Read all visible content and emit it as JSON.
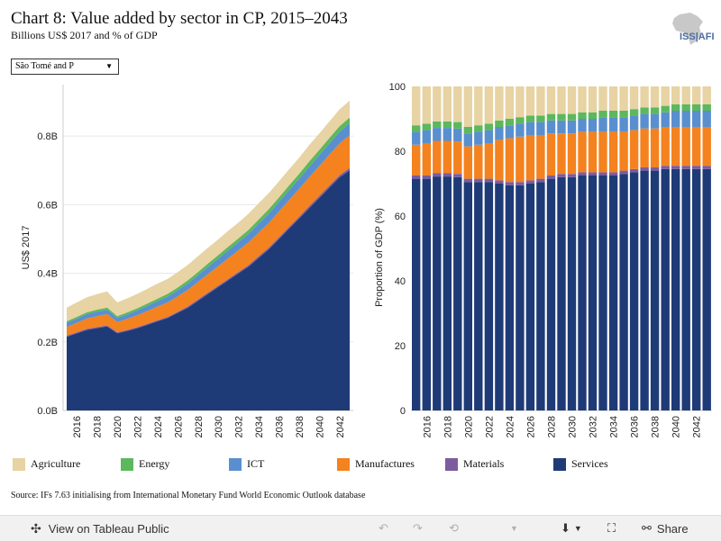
{
  "header": {
    "title": "Chart 8: Value added by sector in CP, 2015–2043",
    "subtitle": "Billions US$ 2017 and % of GDP",
    "logo_text": "ISS|AFI"
  },
  "filter": {
    "selected": "São Tomé and P"
  },
  "source": "Source: IFs 7.63 initialising from International Monetary Fund World Economic Outlook database",
  "toolbar": {
    "view_label": "View on Tableau Public",
    "share_label": "Share"
  },
  "colors": {
    "Agriculture": "#e7d3a3",
    "Energy": "#5cb85c",
    "ICT": "#5a8fcf",
    "Manufactures": "#f4821f",
    "Materials": "#7c5c9e",
    "Services": "#1f3b77"
  },
  "chart_data": [
    {
      "type": "area",
      "ylabel": "US$ 2017",
      "ylim": [
        0,
        0.95
      ],
      "yticks": [
        "0.0B",
        "0.2B",
        "0.4B",
        "0.6B",
        "0.8B"
      ],
      "ytick_values": [
        0,
        0.2,
        0.4,
        0.6,
        0.8
      ],
      "x": [
        2015,
        2016,
        2017,
        2018,
        2019,
        2020,
        2021,
        2022,
        2023,
        2024,
        2025,
        2026,
        2027,
        2028,
        2029,
        2030,
        2031,
        2032,
        2033,
        2034,
        2035,
        2036,
        2037,
        2038,
        2039,
        2040,
        2041,
        2042,
        2043
      ],
      "xticks": [
        2016,
        2018,
        2020,
        2022,
        2024,
        2026,
        2028,
        2030,
        2032,
        2034,
        2036,
        2038,
        2040,
        2042
      ],
      "stack_order": [
        "Services",
        "Materials",
        "Manufactures",
        "ICT",
        "Energy",
        "Agriculture"
      ],
      "series": [
        {
          "name": "Services",
          "values": [
            0.215,
            0.225,
            0.235,
            0.24,
            0.245,
            0.225,
            0.232,
            0.24,
            0.25,
            0.26,
            0.27,
            0.285,
            0.3,
            0.32,
            0.34,
            0.36,
            0.38,
            0.4,
            0.42,
            0.445,
            0.47,
            0.5,
            0.53,
            0.56,
            0.59,
            0.62,
            0.65,
            0.68,
            0.7
          ]
        },
        {
          "name": "Materials",
          "values": [
            0.003,
            0.003,
            0.003,
            0.003,
            0.003,
            0.003,
            0.003,
            0.003,
            0.003,
            0.003,
            0.003,
            0.003,
            0.004,
            0.004,
            0.004,
            0.004,
            0.004,
            0.004,
            0.004,
            0.005,
            0.005,
            0.005,
            0.005,
            0.005,
            0.006,
            0.006,
            0.006,
            0.006,
            0.007
          ]
        },
        {
          "name": "Manufactures",
          "values": [
            0.025,
            0.028,
            0.03,
            0.032,
            0.033,
            0.03,
            0.032,
            0.035,
            0.037,
            0.04,
            0.042,
            0.045,
            0.048,
            0.051,
            0.054,
            0.057,
            0.06,
            0.063,
            0.066,
            0.069,
            0.072,
            0.075,
            0.078,
            0.081,
            0.084,
            0.087,
            0.09,
            0.093,
            0.095
          ]
        },
        {
          "name": "ICT",
          "values": [
            0.012,
            0.012,
            0.013,
            0.013,
            0.013,
            0.012,
            0.013,
            0.014,
            0.015,
            0.016,
            0.017,
            0.018,
            0.019,
            0.02,
            0.021,
            0.022,
            0.023,
            0.024,
            0.025,
            0.026,
            0.027,
            0.028,
            0.029,
            0.03,
            0.031,
            0.032,
            0.033,
            0.034,
            0.035
          ]
        },
        {
          "name": "Energy",
          "values": [
            0.005,
            0.005,
            0.005,
            0.006,
            0.006,
            0.005,
            0.006,
            0.006,
            0.007,
            0.007,
            0.008,
            0.008,
            0.009,
            0.009,
            0.01,
            0.01,
            0.011,
            0.011,
            0.012,
            0.012,
            0.013,
            0.013,
            0.014,
            0.014,
            0.015,
            0.015,
            0.016,
            0.016,
            0.017
          ]
        },
        {
          "name": "Agriculture",
          "values": [
            0.04,
            0.042,
            0.044,
            0.045,
            0.047,
            0.04,
            0.041,
            0.042,
            0.043,
            0.044,
            0.044,
            0.045,
            0.045,
            0.046,
            0.046,
            0.046,
            0.046,
            0.046,
            0.047,
            0.047,
            0.047,
            0.047,
            0.047,
            0.047,
            0.048,
            0.048,
            0.048,
            0.049,
            0.049
          ]
        }
      ]
    },
    {
      "type": "bar",
      "stacked": true,
      "ylabel": "Proportion of GDP (%)",
      "ylim": [
        0,
        100
      ],
      "yticks": [
        "0",
        "20",
        "40",
        "60",
        "80",
        "100"
      ],
      "ytick_values": [
        0,
        20,
        40,
        60,
        80,
        100
      ],
      "x": [
        2015,
        2016,
        2017,
        2018,
        2019,
        2020,
        2021,
        2022,
        2023,
        2024,
        2025,
        2026,
        2027,
        2028,
        2029,
        2030,
        2031,
        2032,
        2033,
        2034,
        2035,
        2036,
        2037,
        2038,
        2039,
        2040,
        2041,
        2042,
        2043
      ],
      "xticks": [
        2016,
        2018,
        2020,
        2022,
        2024,
        2026,
        2028,
        2030,
        2032,
        2034,
        2036,
        2038,
        2040,
        2042
      ],
      "stack_order": [
        "Services",
        "Materials",
        "Manufactures",
        "ICT",
        "Energy",
        "Agriculture"
      ],
      "series": [
        {
          "name": "Services",
          "values": [
            71.5,
            71.5,
            72.2,
            72.2,
            72.0,
            70.5,
            70.5,
            70.5,
            70.0,
            69.5,
            69.5,
            70.0,
            70.5,
            71.5,
            72.0,
            72.0,
            72.5,
            72.5,
            72.5,
            72.5,
            73.0,
            73.5,
            74.0,
            74.0,
            74.5,
            74.5,
            74.5,
            74.5,
            74.5
          ]
        },
        {
          "name": "Materials",
          "values": [
            1.0,
            1.0,
            1.0,
            1.0,
            1.0,
            1.0,
            1.0,
            1.0,
            1.0,
            1.0,
            1.0,
            1.0,
            1.0,
            1.0,
            1.0,
            1.0,
            1.0,
            1.0,
            1.0,
            1.0,
            1.0,
            1.0,
            1.0,
            1.0,
            1.0,
            1.0,
            1.0,
            1.0,
            1.0
          ]
        },
        {
          "name": "Manufactures",
          "values": [
            9.5,
            10.0,
            10.0,
            10.0,
            10.0,
            10.0,
            10.5,
            11.0,
            12.5,
            13.5,
            14.0,
            14.0,
            13.5,
            13.0,
            12.5,
            12.5,
            12.5,
            12.5,
            12.5,
            12.5,
            12.0,
            12.0,
            12.0,
            12.0,
            12.0,
            12.0,
            12.0,
            12.0,
            12.0
          ]
        },
        {
          "name": "ICT",
          "values": [
            4.0,
            4.0,
            4.0,
            4.0,
            4.0,
            4.0,
            4.0,
            4.0,
            4.0,
            4.0,
            4.0,
            4.0,
            4.0,
            4.0,
            4.0,
            4.0,
            4.0,
            4.0,
            4.5,
            4.5,
            4.5,
            4.5,
            4.5,
            4.5,
            4.5,
            5.0,
            5.0,
            5.0,
            5.0
          ]
        },
        {
          "name": "Energy",
          "values": [
            2.0,
            2.0,
            2.0,
            2.0,
            2.0,
            2.0,
            2.0,
            2.0,
            2.0,
            2.0,
            2.0,
            2.0,
            2.0,
            2.0,
            2.0,
            2.0,
            2.0,
            2.0,
            2.0,
            2.0,
            2.0,
            2.0,
            2.0,
            2.0,
            2.0,
            2.0,
            2.0,
            2.0,
            2.0
          ]
        },
        {
          "name": "Agriculture",
          "values": [
            12.0,
            11.5,
            10.8,
            10.8,
            11.0,
            12.5,
            12.0,
            11.5,
            10.5,
            10.0,
            9.5,
            9.0,
            9.0,
            8.5,
            8.5,
            8.5,
            8.0,
            8.0,
            7.5,
            7.5,
            7.5,
            7.0,
            6.5,
            6.5,
            6.0,
            5.5,
            5.5,
            5.5,
            5.5
          ]
        }
      ]
    }
  ],
  "legend": [
    {
      "name": "Agriculture"
    },
    {
      "name": "Energy"
    },
    {
      "name": "ICT"
    },
    {
      "name": "Manufactures"
    },
    {
      "name": "Materials"
    },
    {
      "name": "Services"
    }
  ]
}
